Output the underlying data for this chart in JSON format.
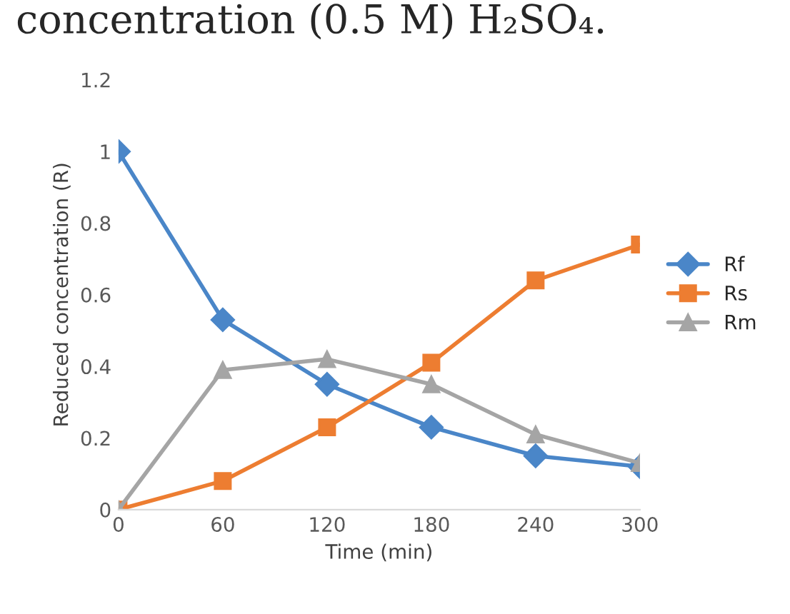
{
  "chart_data": {
    "type": "line",
    "title": "concentration (0.5 M) H₂SO₄.",
    "xlabel": "Time (min)",
    "ylabel": "Reduced concentration (R)",
    "x": [
      0,
      60,
      120,
      180,
      240,
      300
    ],
    "series": [
      {
        "name": "Rf",
        "color": "#4a86c8",
        "marker": "diamond",
        "values": [
          1,
          0.53,
          0.35,
          0.23,
          0.15,
          0.12
        ]
      },
      {
        "name": "Rs",
        "color": "#ed7d31",
        "marker": "square",
        "values": [
          0,
          0.08,
          0.23,
          0.41,
          0.64,
          0.74
        ]
      },
      {
        "name": "Rm",
        "color": "#a5a5a5",
        "marker": "triangle",
        "values": [
          0,
          0.39,
          0.42,
          0.35,
          0.21,
          0.13
        ]
      }
    ],
    "xlim": [
      0,
      300
    ],
    "xticks": [
      0,
      60,
      120,
      180,
      240,
      300
    ],
    "ylim": [
      0,
      1.2
    ],
    "yticks": [
      0,
      {
        "value": 0.2,
        "label": "0.2"
      },
      {
        "value": 0.4,
        "label": "0.4"
      },
      {
        "value": 0.6,
        "label": "0.6"
      },
      {
        "value": 0.8,
        "label": "0.8"
      },
      1,
      {
        "value": 1.2,
        "label": "1.2"
      }
    ],
    "grid": false,
    "legend": "right",
    "line_style": "solid"
  }
}
